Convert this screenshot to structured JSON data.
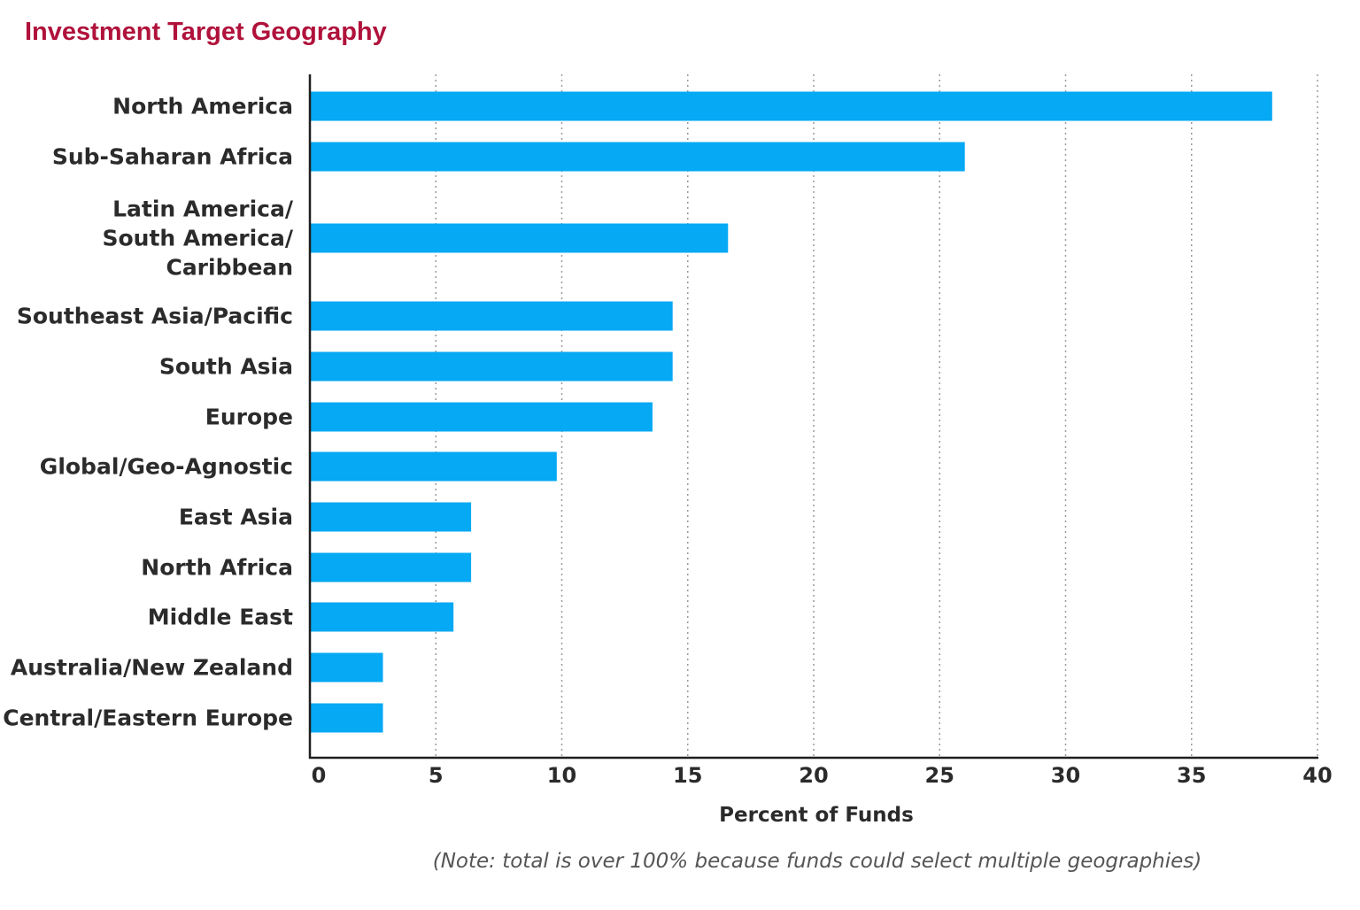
{
  "chart_data": {
    "type": "bar",
    "orientation": "horizontal",
    "title": "Investment Target Geography",
    "xlabel": "Percent of Funds",
    "ylabel": "",
    "note": "(Note: total is over 100% because funds could select multiple geographies)",
    "categories": [
      "North America",
      "Sub-Saharan Africa",
      "Latin America/ South America/ Caribbean",
      "Southeast Asia/Pacific",
      "South Asia",
      "Europe",
      "Global/Geo-Agnostic",
      "East Asia",
      "North Africa",
      "Middle East",
      "Australia/New Zealand",
      "Central/Eastern Europe"
    ],
    "category_lines": [
      [
        "North America"
      ],
      [
        "Sub-Saharan Africa"
      ],
      [
        "Latin America/",
        "South America/",
        "Caribbean"
      ],
      [
        "Southeast Asia/Pacific"
      ],
      [
        "South Asia"
      ],
      [
        "Europe"
      ],
      [
        "Global/Geo-Agnostic"
      ],
      [
        "East Asia"
      ],
      [
        "North Africa"
      ],
      [
        "Middle East"
      ],
      [
        "Australia/New Zealand"
      ],
      [
        "Central/Eastern Europe"
      ]
    ],
    "values": [
      38.2,
      26.0,
      16.6,
      14.4,
      14.4,
      13.6,
      9.8,
      6.4,
      6.4,
      5.7,
      2.9,
      2.9
    ],
    "xlim": [
      0,
      40
    ],
    "xticks": [
      0,
      5,
      10,
      15,
      20,
      25,
      30,
      35,
      40
    ],
    "grid": "vertical-dotted",
    "bar_color": "#05a9f4",
    "title_color": "#b0123b"
  }
}
